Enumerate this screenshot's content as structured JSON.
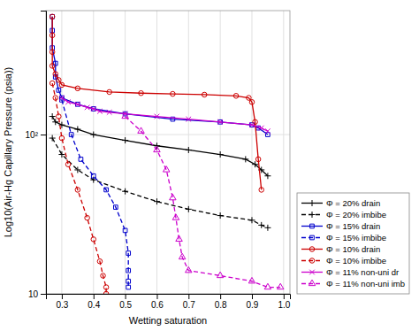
{
  "chart_data": {
    "type": "line",
    "xlabel": "Wetting saturation",
    "ylabel": "Log10(Air-Hg Capillary Pressure (psia))",
    "log": "y",
    "grid": true,
    "legend": "lower right",
    "xlim": [
      0.25,
      1.02
    ],
    "ylim": [
      10,
      600
    ],
    "xticks": [
      0.3,
      0.4,
      0.5,
      0.6,
      0.7,
      0.8,
      0.9,
      {
        "value": 1.0,
        "label": "1.0"
      }
    ],
    "yticks": [
      10,
      {
        "value": 100,
        "label": "10²"
      }
    ],
    "series": [
      {
        "name": "Φ = 20% drain",
        "color": "#000000",
        "line_style": "solid",
        "marker": "plus",
        "x": [
          0.27,
          0.28,
          0.3,
          0.35,
          0.4,
          0.5,
          0.6,
          0.7,
          0.8,
          0.88,
          0.91,
          0.93,
          0.95
        ],
        "values": [
          130,
          120,
          115,
          108,
          100,
          92,
          85,
          80,
          75,
          70,
          65,
          60,
          55
        ]
      },
      {
        "name": "Φ = 20% imbibe",
        "color": "#000000",
        "line_style": "dashed",
        "marker": "plus",
        "x": [
          0.27,
          0.3,
          0.35,
          0.4,
          0.5,
          0.6,
          0.7,
          0.8,
          0.9,
          0.93,
          0.95
        ],
        "values": [
          95,
          75,
          60,
          52,
          44,
          38,
          34,
          31,
          29,
          27,
          26
        ]
      },
      {
        "name": "Φ = 15% drain",
        "color": "#0000cc",
        "line_style": "solid",
        "marker": "square",
        "x": [
          0.27,
          0.27,
          0.27,
          0.28,
          0.28,
          0.29,
          0.3,
          0.35,
          0.4,
          0.5,
          0.65,
          0.8,
          0.9,
          0.92,
          0.95
        ],
        "values": [
          550,
          450,
          350,
          280,
          230,
          190,
          170,
          155,
          145,
          135,
          125,
          120,
          115,
          110,
          100
        ]
      },
      {
        "name": "Φ = 15% imbibe",
        "color": "#0000cc",
        "line_style": "dashed",
        "marker": "square",
        "x": [
          0.3,
          0.33,
          0.36,
          0.4,
          0.44,
          0.47,
          0.5,
          0.51,
          0.51,
          0.51,
          0.51
        ],
        "values": [
          165,
          100,
          70,
          55,
          45,
          35,
          25,
          18,
          14,
          12,
          11
        ]
      },
      {
        "name": "Φ = 10% drain",
        "color": "#cc0000",
        "line_style": "solid",
        "marker": "circle",
        "x": [
          0.27,
          0.27,
          0.27,
          0.27,
          0.28,
          0.29,
          0.3,
          0.35,
          0.45,
          0.55,
          0.65,
          0.75,
          0.85,
          0.89,
          0.9,
          0.91,
          0.92,
          0.93
        ],
        "values": [
          550,
          420,
          330,
          270,
          240,
          220,
          205,
          195,
          185,
          182,
          180,
          178,
          175,
          170,
          160,
          120,
          70,
          45
        ]
      },
      {
        "name": "Φ = 10% imbibe",
        "color": "#cc0000",
        "line_style": "dashed",
        "marker": "circle",
        "x": [
          0.27,
          0.28,
          0.29,
          0.3,
          0.32,
          0.35,
          0.38,
          0.4,
          0.42,
          0.43,
          0.44,
          0.44
        ],
        "values": [
          210,
          170,
          130,
          95,
          65,
          45,
          30,
          22,
          16,
          13,
          11,
          10
        ]
      },
      {
        "name": "Φ = 11% non-uni dr",
        "color": "#cc00cc",
        "line_style": "solid",
        "marker": "x",
        "x": [
          0.3,
          0.32,
          0.35,
          0.38,
          0.4,
          0.42,
          0.45,
          0.5,
          0.6,
          0.7,
          0.8,
          0.9,
          0.93,
          0.95
        ],
        "values": [
          170,
          160,
          155,
          148,
          145,
          140,
          138,
          135,
          130,
          125,
          120,
          115,
          110,
          105
        ]
      },
      {
        "name": "Φ = 11% non-uni imb",
        "color": "#cc00cc",
        "line_style": "dashed",
        "marker": "triangle",
        "x": [
          0.5,
          0.55,
          0.6,
          0.63,
          0.65,
          0.66,
          0.67,
          0.68,
          0.7,
          0.8,
          0.9,
          0.95,
          0.99
        ],
        "values": [
          130,
          105,
          80,
          60,
          40,
          30,
          22,
          17,
          14,
          13,
          12,
          11,
          11
        ]
      }
    ]
  }
}
